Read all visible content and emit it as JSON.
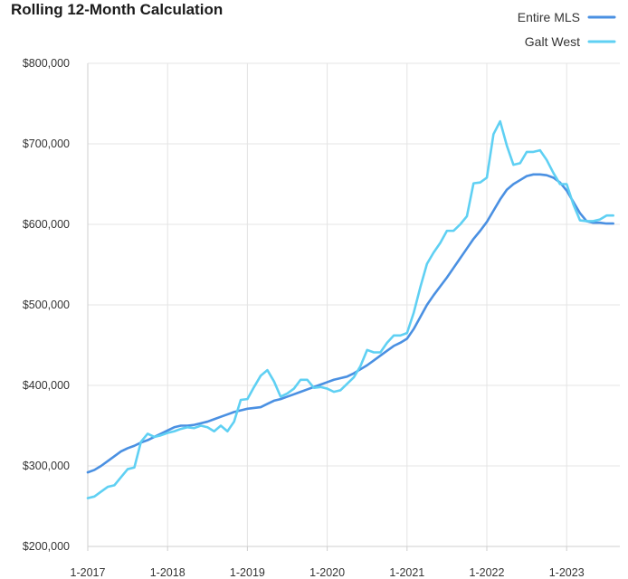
{
  "chart_data": {
    "type": "line",
    "title": "Rolling 12-Month Calculation",
    "xlabel": "",
    "ylabel": "",
    "x_tick_labels": [
      "1-2017",
      "1-2018",
      "1-2019",
      "1-2020",
      "1-2021",
      "1-2022",
      "1-2023"
    ],
    "y_tick_labels": [
      "$200,000",
      "$300,000",
      "$400,000",
      "$500,000",
      "$600,000",
      "$700,000",
      "$800,000"
    ],
    "y_ticks": [
      200000,
      300000,
      400000,
      500000,
      600000,
      700000,
      800000
    ],
    "ylim": [
      200000,
      800000
    ],
    "xlim": [
      "2017-01",
      "2023-09"
    ],
    "grid": true,
    "legend_position": "top-right",
    "x": [
      "2017-01",
      "2017-02",
      "2017-03",
      "2017-04",
      "2017-05",
      "2017-06",
      "2017-07",
      "2017-08",
      "2017-09",
      "2017-10",
      "2017-11",
      "2017-12",
      "2018-01",
      "2018-02",
      "2018-03",
      "2018-04",
      "2018-05",
      "2018-06",
      "2018-07",
      "2018-08",
      "2018-09",
      "2018-10",
      "2018-11",
      "2018-12",
      "2019-01",
      "2019-02",
      "2019-03",
      "2019-04",
      "2019-05",
      "2019-06",
      "2019-07",
      "2019-08",
      "2019-09",
      "2019-10",
      "2019-11",
      "2019-12",
      "2020-01",
      "2020-02",
      "2020-03",
      "2020-04",
      "2020-05",
      "2020-06",
      "2020-07",
      "2020-08",
      "2020-09",
      "2020-10",
      "2020-11",
      "2020-12",
      "2021-01",
      "2021-02",
      "2021-03",
      "2021-04",
      "2021-05",
      "2021-06",
      "2021-07",
      "2021-08",
      "2021-09",
      "2021-10",
      "2021-11",
      "2021-12",
      "2022-01",
      "2022-02",
      "2022-03",
      "2022-04",
      "2022-05",
      "2022-06",
      "2022-07",
      "2022-08",
      "2022-09",
      "2022-10",
      "2022-11",
      "2022-12",
      "2023-01",
      "2023-02",
      "2023-03",
      "2023-04",
      "2023-05",
      "2023-06",
      "2023-07",
      "2023-08"
    ],
    "series": [
      {
        "name": "Entire MLS",
        "color": "#4a90e2",
        "values": [
          292000,
          295000,
          300000,
          306000,
          312000,
          318000,
          322000,
          325000,
          329000,
          332000,
          336000,
          340000,
          344000,
          348000,
          350000,
          350000,
          351000,
          353000,
          355000,
          358000,
          361000,
          364000,
          367000,
          369000,
          371000,
          372000,
          373000,
          377000,
          381000,
          383000,
          386000,
          389000,
          392000,
          395000,
          398000,
          401000,
          404000,
          407000,
          409000,
          411000,
          415000,
          420000,
          425000,
          431000,
          437000,
          443000,
          449000,
          453000,
          458000,
          470000,
          485000,
          500000,
          512000,
          523000,
          534000,
          546000,
          558000,
          570000,
          582000,
          592000,
          603000,
          617000,
          631000,
          643000,
          650000,
          655000,
          660000,
          662000,
          662000,
          661000,
          658000,
          652000,
          642000,
          628000,
          614000,
          604000,
          602000,
          602000,
          601000,
          601000
        ]
      },
      {
        "name": "Galt West",
        "color": "#5fd0f3",
        "values": [
          260000,
          262000,
          268000,
          274000,
          276000,
          286000,
          296000,
          298000,
          330000,
          340000,
          336000,
          338000,
          341000,
          343000,
          346000,
          348000,
          347000,
          350000,
          348000,
          343000,
          350000,
          343000,
          355000,
          382000,
          383000,
          398000,
          412000,
          419000,
          405000,
          386000,
          390000,
          396000,
          407000,
          407000,
          397000,
          398000,
          396000,
          392000,
          394000,
          402000,
          410000,
          424000,
          444000,
          441000,
          441000,
          453000,
          462000,
          462000,
          465000,
          490000,
          522000,
          551000,
          565000,
          577000,
          592000,
          592000,
          600000,
          610000,
          651000,
          652000,
          658000,
          712000,
          728000,
          698000,
          674000,
          676000,
          690000,
          690000,
          692000,
          680000,
          664000,
          650000,
          650000,
          625000,
          605000,
          604000,
          604000,
          606000,
          611000,
          611000
        ]
      }
    ]
  }
}
